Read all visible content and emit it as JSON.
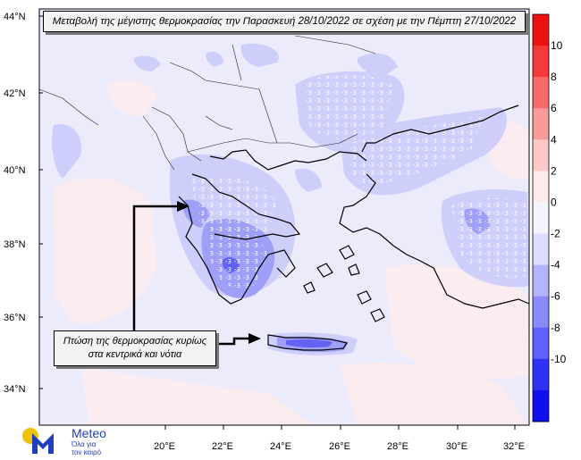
{
  "title": "Μεταβολή της μέγιστης θερμοκρασίας την Παρασκευή 28/10/2022 σε σχέση με την Πέμπτη 27/10/2022",
  "annotation": {
    "line1": "Πτώση της θερμοκρασίας κυρίως",
    "line2": "στα κεντρικά και νότια"
  },
  "lat_labels": [
    "44°N",
    "42°N",
    "40°N",
    "38°N",
    "36°N",
    "34°N"
  ],
  "lon_labels": [
    "20°E",
    "22°E",
    "24°E",
    "26°E",
    "28°E",
    "30°E",
    "32°E"
  ],
  "colorbar": {
    "labels": [
      "10",
      "8",
      "6",
      "4",
      "2",
      "0",
      "-2",
      "-4",
      "-6",
      "-8",
      "-10"
    ],
    "colors": [
      "#ee1111",
      "#f43a3a",
      "#f86a6a",
      "#fb9a9a",
      "#fdc8c8",
      "#fdeaea",
      "#f4f4ff",
      "#dcdcff",
      "#b3b3ff",
      "#8a8aff",
      "#6060ff",
      "#3030f5",
      "#1010ee"
    ]
  },
  "logo": {
    "name": "Meteo",
    "tagline1": "Όλα για",
    "tagline2": "τον καιρό",
    "colors": {
      "circle": "#f2c200",
      "m": "#1f3fbf"
    }
  }
}
